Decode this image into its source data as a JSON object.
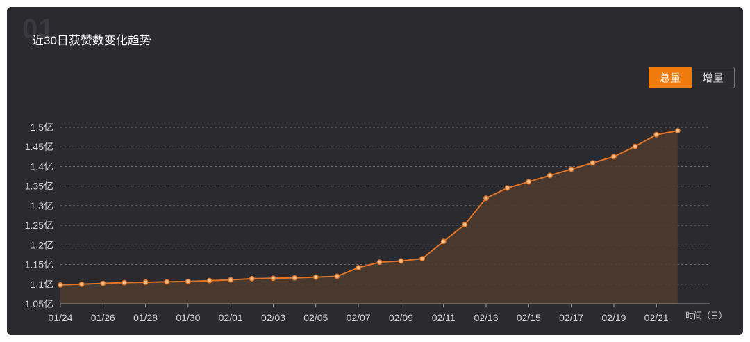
{
  "card": {
    "watermark": "01",
    "title": "近30日获赞数变化趋势"
  },
  "toggle": {
    "total_label": "总量",
    "increment_label": "增量",
    "selected": "总量"
  },
  "colors": {
    "accent": "#f07a0c",
    "line": "#e0752a",
    "point_fill": "#f3c089",
    "area": "#4d3a2e",
    "grid": "#6e6d73",
    "text": "#d8d8d8",
    "background": "#2b2a2f"
  },
  "chart_data": {
    "type": "area",
    "x_unit_label": "时间（日）",
    "y_tick_labels": [
      "1.05亿",
      "1.1亿",
      "1.15亿",
      "1.2亿",
      "1.25亿",
      "1.3亿",
      "1.35亿",
      "1.4亿",
      "1.45亿",
      "1.5亿"
    ],
    "y_ticks": [
      1.05,
      1.1,
      1.15,
      1.2,
      1.25,
      1.3,
      1.35,
      1.4,
      1.45,
      1.5
    ],
    "ylim": [
      1.05,
      1.5
    ],
    "x_tick_labels": [
      "01/24",
      "01/26",
      "01/28",
      "01/30",
      "02/01",
      "02/03",
      "02/05",
      "02/07",
      "02/09",
      "02/11",
      "02/13",
      "02/15",
      "02/17",
      "02/19",
      "02/21"
    ],
    "x": [
      "01/24",
      "01/25",
      "01/26",
      "01/27",
      "01/28",
      "01/29",
      "01/30",
      "01/31",
      "02/01",
      "02/02",
      "02/03",
      "02/04",
      "02/05",
      "02/06",
      "02/07",
      "02/08",
      "02/09",
      "02/10",
      "02/11",
      "02/12",
      "02/13",
      "02/14",
      "02/15",
      "02/16",
      "02/17",
      "02/18",
      "02/19",
      "02/20",
      "02/21",
      "02/22"
    ],
    "series": [
      {
        "values": [
          1.098,
          1.1,
          1.102,
          1.104,
          1.105,
          1.106,
          1.107,
          1.109,
          1.111,
          1.114,
          1.115,
          1.116,
          1.118,
          1.12,
          1.142,
          1.156,
          1.159,
          1.165,
          1.209,
          1.252,
          1.319,
          1.345,
          1.361,
          1.377,
          1.393,
          1.409,
          1.425,
          1.451,
          1.481,
          1.491
        ]
      }
    ],
    "grid": true,
    "grid_style": "dashed-horizontal",
    "legend": "none"
  }
}
